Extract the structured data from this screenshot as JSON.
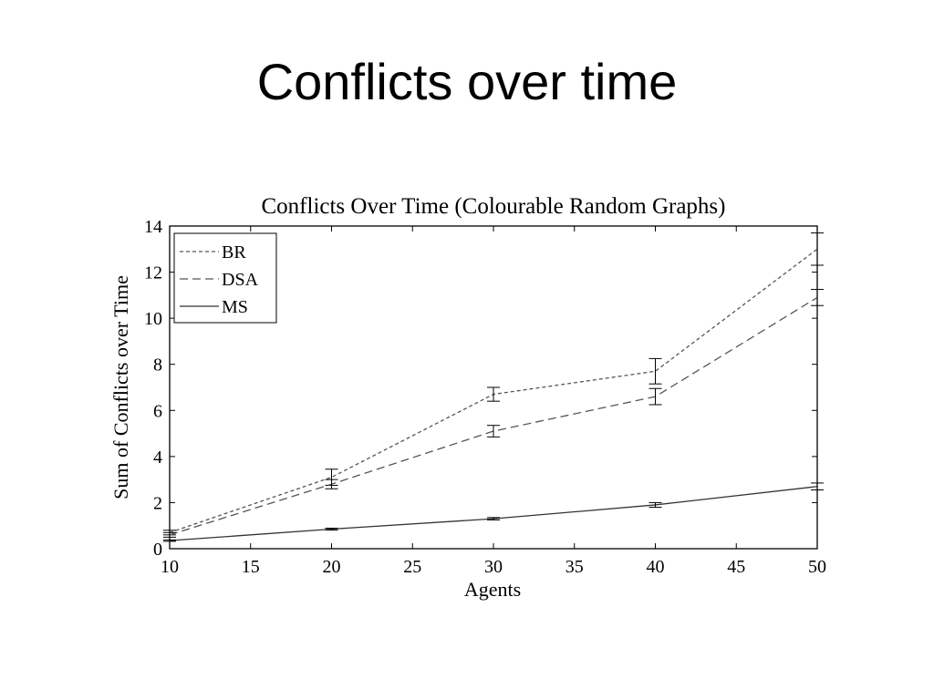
{
  "slide": {
    "title": "Conflicts over time"
  },
  "chart_data": {
    "type": "line",
    "title": "Conflicts Over Time (Colourable Random Graphs)",
    "xlabel": "Agents",
    "ylabel": "Sum of Conflicts over Time",
    "xlim": [
      10,
      50
    ],
    "ylim": [
      0,
      14
    ],
    "xticks": [
      10,
      15,
      20,
      25,
      30,
      35,
      40,
      45,
      50
    ],
    "yticks": [
      0,
      2,
      4,
      6,
      8,
      10,
      12,
      14
    ],
    "grid": false,
    "legend_position": "top-left",
    "x": [
      10,
      20,
      30,
      40,
      50
    ],
    "series": [
      {
        "name": "BR",
        "style": "dash-dot",
        "color": "#555555",
        "values": [
          0.7,
          3.1,
          6.7,
          7.7,
          13.0
        ],
        "error": [
          0.1,
          0.35,
          0.3,
          0.55,
          0.7
        ]
      },
      {
        "name": "DSA",
        "style": "dashed",
        "color": "#555555",
        "values": [
          0.6,
          2.8,
          5.1,
          6.6,
          10.9
        ],
        "error": [
          0.1,
          0.2,
          0.25,
          0.35,
          0.35
        ]
      },
      {
        "name": "MS",
        "style": "solid",
        "color": "#333333",
        "values": [
          0.35,
          0.85,
          1.3,
          1.9,
          2.7
        ],
        "error": [
          0.03,
          0.04,
          0.05,
          0.1,
          0.15
        ]
      }
    ]
  }
}
